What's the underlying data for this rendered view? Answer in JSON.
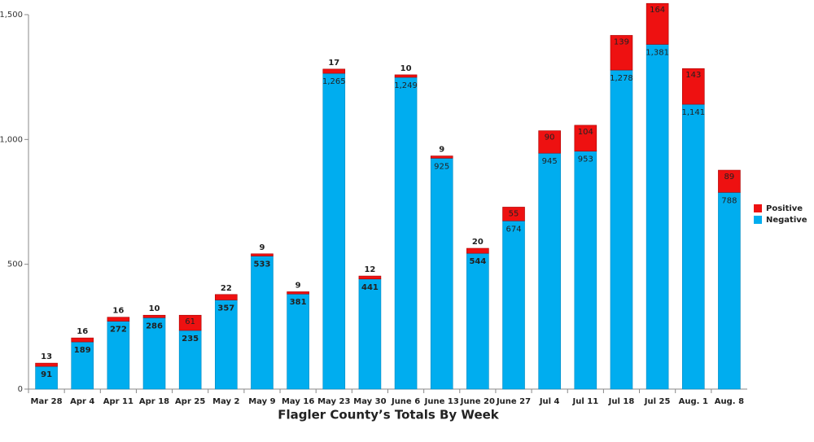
{
  "chart_data": {
    "type": "stacked-bar",
    "x_label": "Flagler County’s Totals By Week",
    "categories": [
      "Mar 28",
      "Apr 4",
      "Apr 11",
      "Apr 18",
      "Apr 25",
      "May 2",
      "May 9",
      "May 16",
      "May 23",
      "May 30",
      "June 6",
      "June 13",
      "June 20",
      "June 27",
      "Jul 4",
      "Jul 11",
      "Jul 18",
      "Jul 25",
      "Aug. 1",
      "Aug. 8"
    ],
    "series": [
      {
        "name": "Negative",
        "color": "#00adef",
        "values": [
          91,
          189,
          272,
          286,
          235,
          357,
          533,
          381,
          1265,
          441,
          1249,
          925,
          544,
          674,
          945,
          953,
          1278,
          1381,
          1141,
          788
        ],
        "value_labels": [
          "91",
          "189",
          "272",
          "286",
          "235",
          "357",
          "533",
          "381",
          "1,265",
          "441",
          "1,249",
          "925",
          "544",
          "674",
          "945",
          "953",
          "1,278",
          "1,381",
          "1,141",
          "788"
        ]
      },
      {
        "name": "Positive",
        "color": "#ee1111",
        "values": [
          13,
          16,
          16,
          10,
          61,
          22,
          9,
          9,
          17,
          12,
          10,
          9,
          20,
          55,
          90,
          104,
          139,
          164,
          143,
          89
        ]
      }
    ],
    "ylim": [
      0,
      1500
    ],
    "yticks": [
      0,
      500,
      {
        "value": 1000,
        "label": "1,000"
      },
      {
        "value": 1500,
        "label": "1,500"
      }
    ]
  }
}
